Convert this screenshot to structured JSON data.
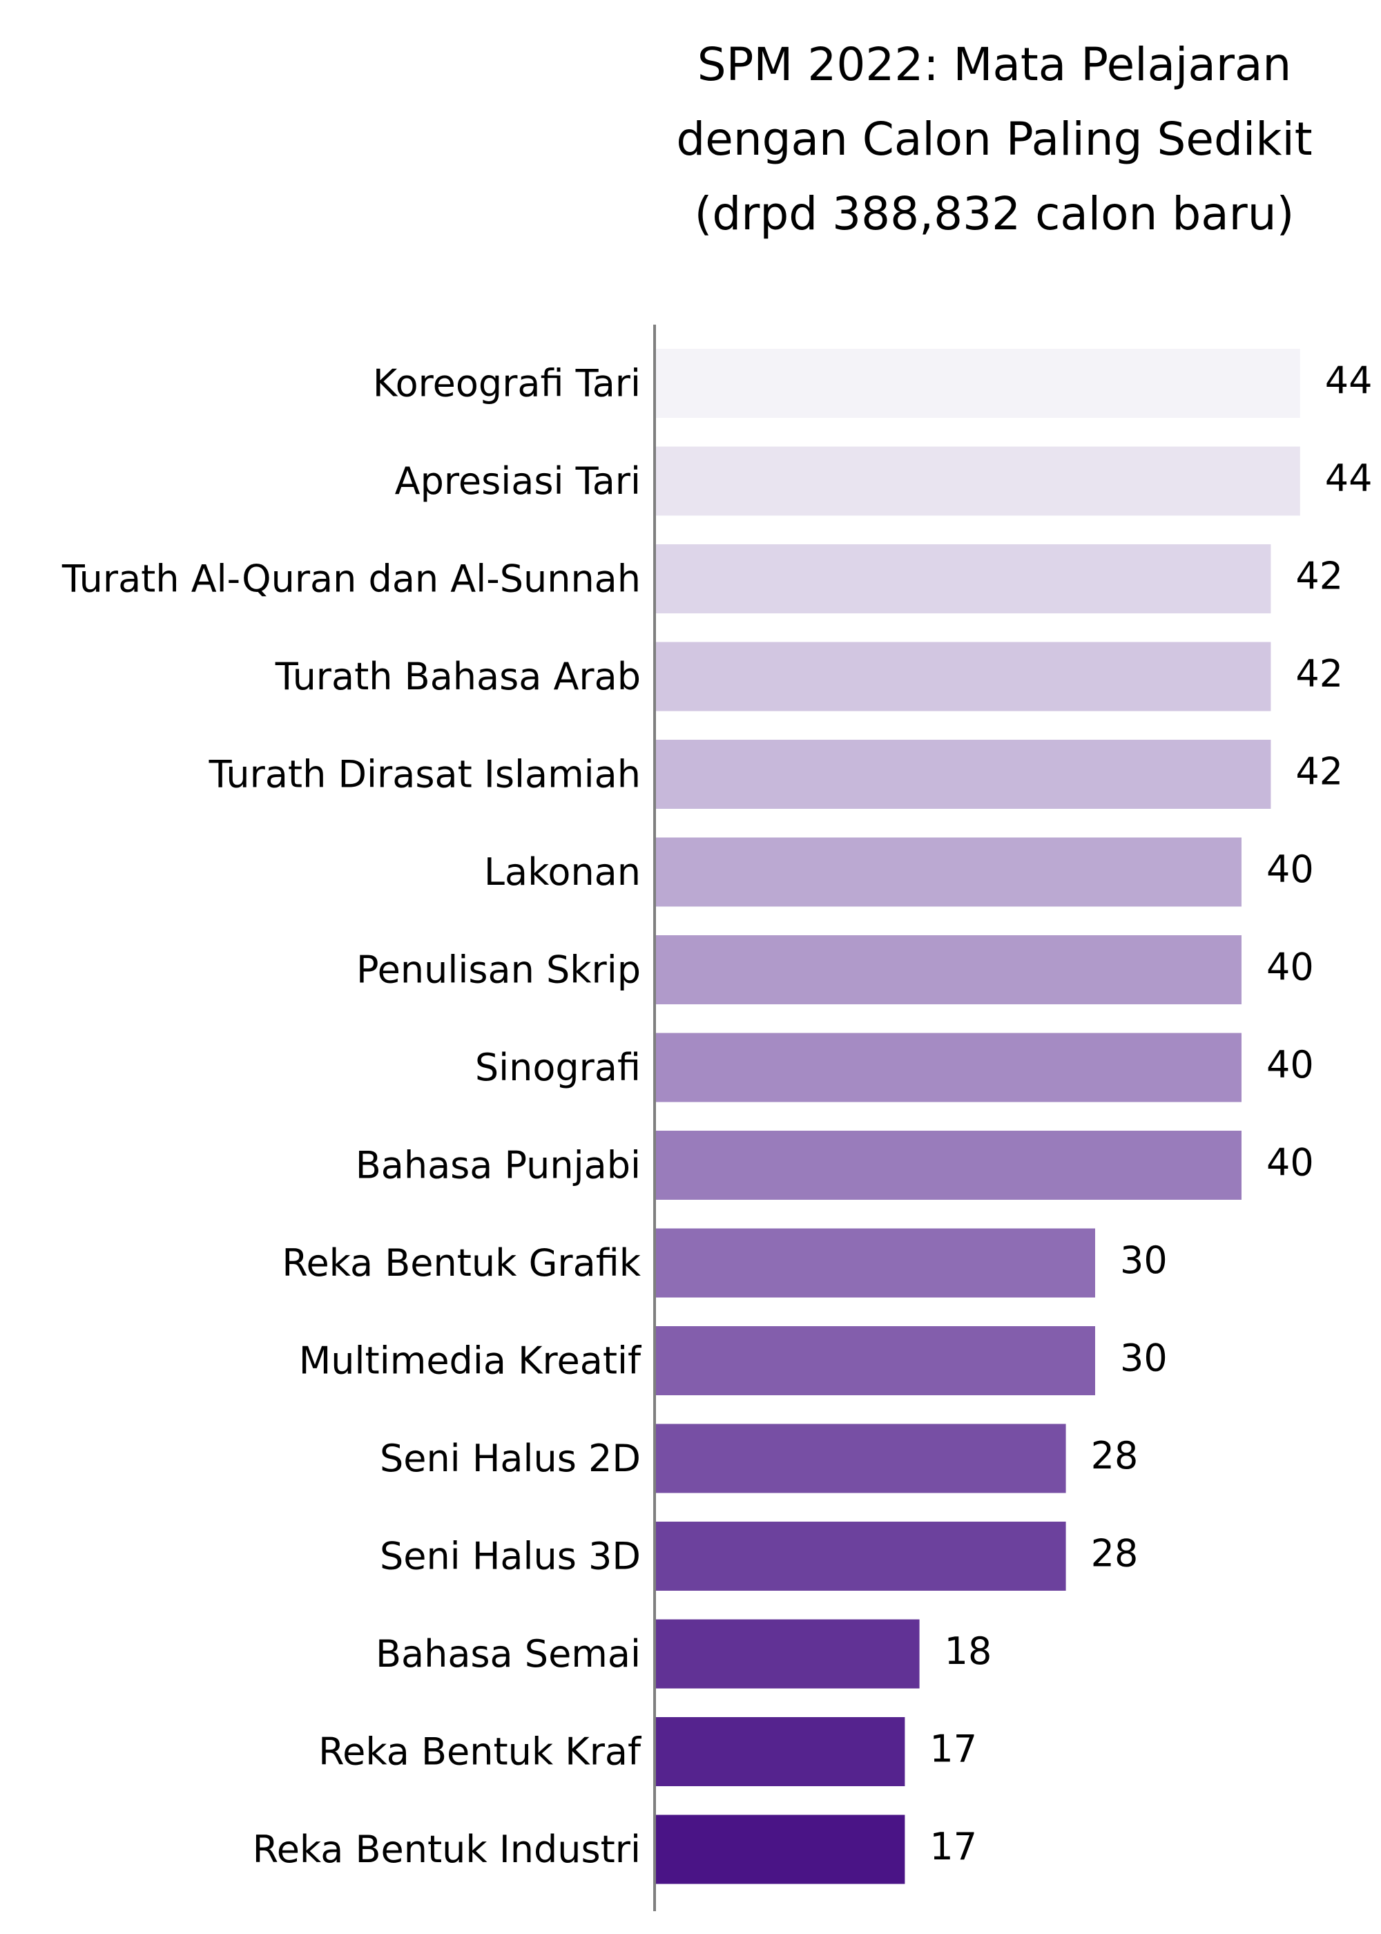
{
  "chart_data": {
    "type": "bar",
    "orientation": "horizontal",
    "title_lines": [
      "SPM 2022: Mata Pelajaran",
      "dengan Calon Paling Sedikit",
      "(drpd 388,832 calon baru)"
    ],
    "xlabel": "",
    "ylabel": "",
    "xlim": [
      0,
      44
    ],
    "grid": false,
    "legend": "none",
    "colormap": "purples-gradient",
    "color_start": "#f4f3f8",
    "color_end": "#4a1486",
    "categories": [
      "Koreografi Tari",
      "Apresiasi Tari",
      "Turath Al-Quran dan Al-Sunnah",
      "Turath Bahasa Arab",
      "Turath Dirasat Islamiah",
      "Lakonan",
      "Penulisan Skrip",
      "Sinografi",
      "Bahasa Punjabi",
      "Reka Bentuk Grafik",
      "Multimedia Kreatif",
      "Seni Halus 2D",
      "Seni Halus 3D",
      "Bahasa Semai",
      "Reka Bentuk Kraf",
      "Reka Bentuk Industri"
    ],
    "values": [
      44,
      44,
      42,
      42,
      42,
      40,
      40,
      40,
      40,
      30,
      30,
      28,
      28,
      18,
      17,
      17
    ],
    "value_labels": [
      "44",
      "44",
      "42",
      "42",
      "42",
      "40",
      "40",
      "40",
      "40",
      "30",
      "30",
      "28",
      "28",
      "18",
      "17",
      "17"
    ]
  }
}
